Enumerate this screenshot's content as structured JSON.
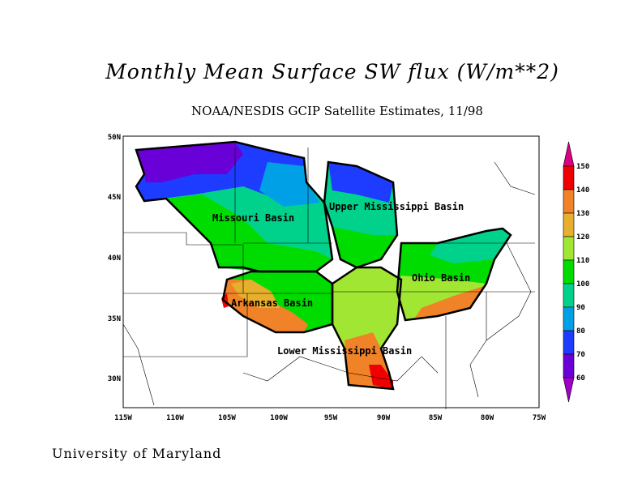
{
  "title": "Monthly Mean Surface SW flux (W/m**2)",
  "subtitle": "NOAA/NESDIS GCIP Satellite Estimates, 11/98",
  "footer": "University of Maryland",
  "map": {
    "lat_labels": [
      "50N",
      "45N",
      "40N",
      "35N",
      "30N"
    ],
    "lon_labels": [
      "115W",
      "110W",
      "105W",
      "100W",
      "95W",
      "90W",
      "85W",
      "80W",
      "75W"
    ],
    "basins": [
      "Missouri Basin",
      "Upper Mississippi Basin",
      "Ohio Basin",
      "Arkansas Basin",
      "Lower Mississippi Basin"
    ]
  },
  "colorbar": {
    "labels": [
      "150",
      "140",
      "130",
      "120",
      "110",
      "100",
      "90",
      "80",
      "70",
      "60"
    ],
    "colors": [
      "#f00000",
      "#f08228",
      "#e6af2d",
      "#a0e632",
      "#00dc00",
      "#00d28c",
      "#00a0e6",
      "#1e3cff",
      "#6a00d8"
    ],
    "over_color": "#dc0082",
    "under_color": "#a000c8"
  }
}
